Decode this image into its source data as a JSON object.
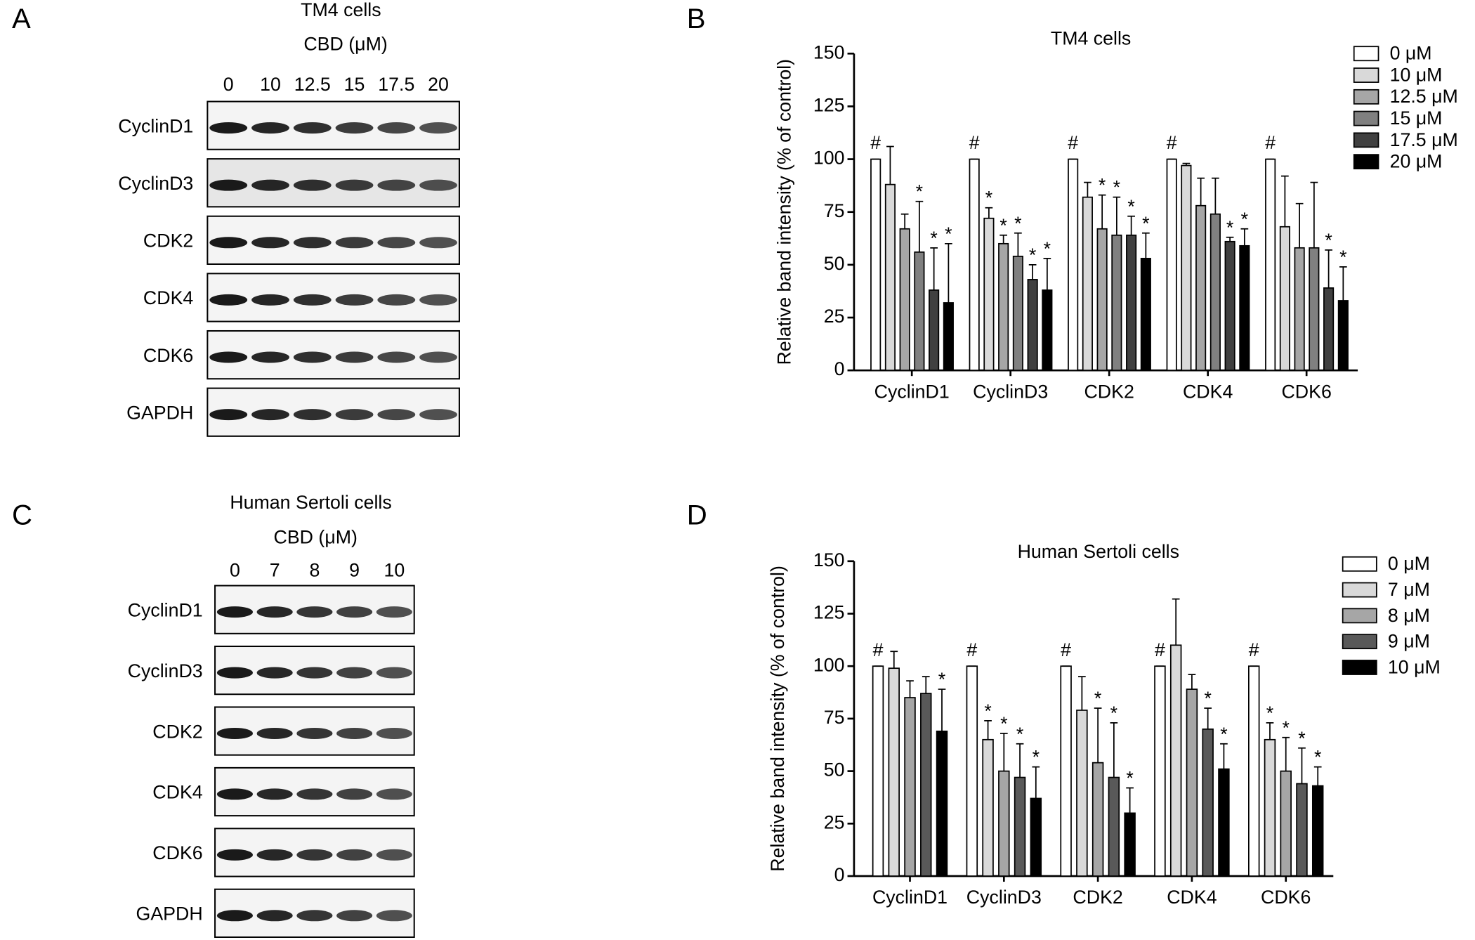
{
  "blots": [
    {
      "letter": "A",
      "title": "TM4 cells",
      "treatment": "CBD (μM)",
      "doses": [
        "0",
        "10",
        "12.5",
        "15",
        "17.5",
        "20"
      ],
      "proteins": [
        "CyclinD1",
        "CyclinD3",
        "CDK2",
        "CDK4",
        "CDK6",
        "GAPDH"
      ]
    },
    {
      "letter": "C",
      "title": "Human Sertoli cells",
      "treatment": "CBD (μM)",
      "doses": [
        "0",
        "7",
        "8",
        "9",
        "10"
      ],
      "proteins": [
        "CyclinD1",
        "CyclinD3",
        "CDK2",
        "CDK4",
        "CDK6",
        "GAPDH"
      ]
    }
  ],
  "chart_data": [
    {
      "type": "bar",
      "letter": "B",
      "title": "TM4 cells",
      "ylabel": "Relative band intensity  (% of control)",
      "categories": [
        "CyclinD1",
        "CyclinD3",
        "CDK2",
        "CDK4",
        "CDK6"
      ],
      "ylim": [
        0,
        150
      ],
      "yticks": [
        0,
        25,
        50,
        75,
        100,
        125,
        150
      ],
      "series": [
        {
          "name": "0 μM",
          "color": "#ffffff",
          "values": [
            100,
            100,
            100,
            100,
            100
          ],
          "errors": [
            0,
            0,
            0,
            0,
            0
          ],
          "marks": [
            "#",
            "#",
            "#",
            "#",
            "#"
          ]
        },
        {
          "name": "10 μM",
          "color": "#d9d9d9",
          "values": [
            88,
            72,
            82,
            97,
            68
          ],
          "errors": [
            18,
            5,
            7,
            1,
            24
          ],
          "marks": [
            null,
            "*",
            null,
            null,
            null
          ]
        },
        {
          "name": "12.5 μM",
          "color": "#a6a6a6",
          "values": [
            67,
            60,
            67,
            78,
            58
          ],
          "errors": [
            7,
            4,
            16,
            13,
            21
          ],
          "marks": [
            null,
            "*",
            "*",
            null,
            null
          ]
        },
        {
          "name": "15 μM",
          "color": "#808080",
          "values": [
            56,
            54,
            64,
            74,
            58
          ],
          "errors": [
            24,
            11,
            18,
            17,
            31
          ],
          "marks": [
            "*",
            "*",
            "*",
            null,
            null
          ]
        },
        {
          "name": "17.5 μM",
          "color": "#404040",
          "values": [
            38,
            43,
            64,
            61,
            39
          ],
          "errors": [
            20,
            7,
            9,
            2,
            18
          ],
          "marks": [
            "*",
            "*",
            "*",
            "*",
            "*"
          ]
        },
        {
          "name": "20 μM",
          "color": "#000000",
          "values": [
            32,
            38,
            53,
            59,
            33
          ],
          "errors": [
            28,
            15,
            12,
            8,
            16
          ],
          "marks": [
            "*",
            "*",
            "*",
            "*",
            "*"
          ]
        }
      ]
    },
    {
      "type": "bar",
      "letter": "D",
      "title": "Human Sertoli cells",
      "ylabel": "Relative band intensity (% of control)",
      "categories": [
        "CyclinD1",
        "CyclinD3",
        "CDK2",
        "CDK4",
        "CDK6"
      ],
      "ylim": [
        0,
        150
      ],
      "yticks": [
        0,
        25,
        50,
        75,
        100,
        125,
        150
      ],
      "series": [
        {
          "name": "0 μM",
          "color": "#ffffff",
          "values": [
            100,
            100,
            100,
            100,
            100
          ],
          "errors": [
            0,
            0,
            0,
            0,
            0
          ],
          "marks": [
            "#",
            "#",
            "#",
            "#",
            "#"
          ]
        },
        {
          "name": "7 μM",
          "color": "#d9d9d9",
          "values": [
            99,
            65,
            79,
            110,
            65
          ],
          "errors": [
            8,
            9,
            16,
            22,
            8
          ],
          "marks": [
            null,
            "*",
            null,
            null,
            "*"
          ]
        },
        {
          "name": "8 μM",
          "color": "#a6a6a6",
          "values": [
            85,
            50,
            54,
            89,
            50
          ],
          "errors": [
            8,
            18,
            26,
            7,
            16
          ],
          "marks": [
            null,
            "*",
            "*",
            null,
            "*"
          ]
        },
        {
          "name": "9 μM",
          "color": "#595959",
          "values": [
            87,
            47,
            47,
            70,
            44
          ],
          "errors": [
            8,
            16,
            26,
            10,
            17
          ],
          "marks": [
            null,
            "*",
            "*",
            "*",
            "*"
          ]
        },
        {
          "name": "10 μM",
          "color": "#000000",
          "values": [
            69,
            37,
            30,
            51,
            43
          ],
          "errors": [
            20,
            15,
            12,
            12,
            9
          ],
          "marks": [
            "*",
            "*",
            "*",
            "*",
            "*"
          ]
        }
      ]
    }
  ]
}
